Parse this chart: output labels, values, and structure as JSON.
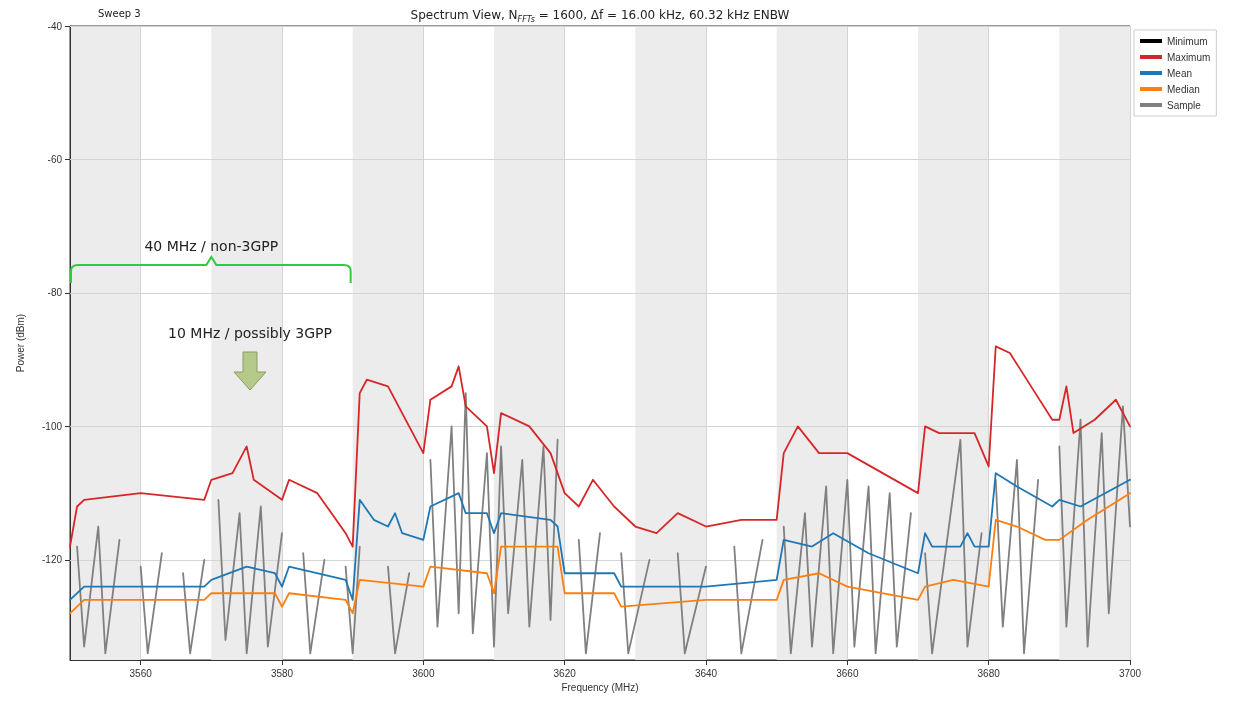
{
  "chart_data": {
    "type": "line",
    "title": "Spectrum View, N$_{FFTs}$ =  1600, Δf = 16.00 kHz, 60.32 kHz ENBW",
    "xlabel": "Frequency (MHz)",
    "ylabel": "Power (dBm)",
    "xlim": [
      3550,
      3700
    ],
    "xticks": [
      3560,
      3580,
      3600,
      3620,
      3640,
      3660,
      3680,
      3700
    ],
    "ylim": [
      -135,
      -40
    ],
    "yticks": [
      -120,
      -100,
      -80,
      -60,
      -40
    ],
    "grid": true,
    "legend": "top right",
    "marker": "none",
    "line_style": "solid",
    "annotations": [
      "Sweep 3",
      {
        "text": "40 MHz / non-3GPP",
        "x": 3570,
        "y": -74
      },
      "10 MHz / possibly 3GPP"
    ],
    "bands": [
      {
        "axis": "x",
        "from": 3550,
        "to": 3560,
        "color": "#ececec"
      },
      {
        "axis": "x",
        "from": 3570,
        "to": 3580,
        "color": "#ececec"
      },
      {
        "axis": "x",
        "from": 3590,
        "to": 3600,
        "color": "#ececec"
      },
      {
        "axis": "x",
        "from": 3610,
        "to": 3620,
        "color": "#ececec"
      },
      {
        "axis": "x",
        "from": 3630,
        "to": 3640,
        "color": "#ececec"
      },
      {
        "axis": "x",
        "from": 3650,
        "to": 3660,
        "color": "#ececec"
      },
      {
        "axis": "x",
        "from": 3670,
        "to": 3680,
        "color": "#ececec"
      },
      {
        "axis": "x",
        "from": 3690,
        "to": 3700,
        "color": "#ececec"
      }
    ],
    "series": [
      {
        "name": "Minimum",
        "color": "#000000"
      },
      {
        "name": "Maximum",
        "color": "#d62728",
        "x": [
          3550,
          3551,
          3552,
          3560,
          3569,
          3570,
          3573,
          3575,
          3576,
          3580,
          3581,
          3585,
          3589,
          3590,
          3591,
          3592,
          3595,
          3597,
          3600,
          3601,
          3604,
          3605,
          3606,
          3609,
          3610,
          3611,
          3615,
          3618,
          3620,
          3622,
          3624,
          3627,
          3630,
          3633,
          3636,
          3640,
          3645,
          3650,
          3651,
          3653,
          3656,
          3660,
          3665,
          3670,
          3671,
          3673,
          3678,
          3680,
          3681,
          3683,
          3686,
          3689,
          3690,
          3691,
          3692,
          3695,
          3698,
          3700
        ],
        "values": [
          -118,
          -112,
          -111,
          -110,
          -111,
          -108,
          -107,
          -103,
          -108,
          -111,
          -108,
          -110,
          -116,
          -118,
          -95,
          -93,
          -94,
          -98,
          -104,
          -96,
          -94,
          -91,
          -97,
          -100,
          -107,
          -98,
          -100,
          -104,
          -110,
          -112,
          -108,
          -112,
          -115,
          -116,
          -113,
          -115,
          -114,
          -114,
          -104,
          -100,
          -104,
          -104,
          -107,
          -110,
          -100,
          -101,
          -101,
          -106,
          -88,
          -89,
          -94,
          -99,
          -99,
          -94,
          -101,
          -99,
          -96,
          -100
        ]
      },
      {
        "name": "Mean",
        "color": "#1f77b4",
        "x": [
          3550,
          3552,
          3560,
          3569,
          3570,
          3575,
          3579,
          3580,
          3581,
          3589,
          3590,
          3591,
          3593,
          3595,
          3596,
          3597,
          3600,
          3601,
          3605,
          3606,
          3609,
          3610,
          3611,
          3618,
          3619,
          3620,
          3627,
          3628,
          3640,
          3650,
          3651,
          3655,
          3658,
          3663,
          3670,
          3671,
          3672,
          3676,
          3677,
          3678,
          3680,
          3681,
          3684,
          3689,
          3690,
          3693,
          3700
        ],
        "values": [
          -126,
          -124,
          -124,
          -124,
          -123,
          -121,
          -122,
          -124,
          -121,
          -123,
          -126,
          -111,
          -114,
          -115,
          -113,
          -116,
          -117,
          -112,
          -110,
          -113,
          -113,
          -116,
          -113,
          -114,
          -115,
          -122,
          -122,
          -124,
          -124,
          -123,
          -117,
          -118,
          -116,
          -119,
          -122,
          -116,
          -118,
          -118,
          -116,
          -118,
          -118,
          -107,
          -109,
          -112,
          -111,
          -112,
          -108
        ]
      },
      {
        "name": "Median",
        "color": "#ff7f0e",
        "x": [
          3550,
          3552,
          3560,
          3569,
          3570,
          3579,
          3580,
          3581,
          3589,
          3590,
          3591,
          3600,
          3601,
          3609,
          3610,
          3611,
          3619,
          3620,
          3627,
          3628,
          3640,
          3650,
          3651,
          3656,
          3660,
          3670,
          3671,
          3675,
          3680,
          3681,
          3684,
          3688,
          3690,
          3694,
          3700
        ],
        "values": [
          -128,
          -126,
          -126,
          -126,
          -125,
          -125,
          -127,
          -125,
          -126,
          -128,
          -123,
          -124,
          -121,
          -122,
          -125,
          -118,
          -118,
          -125,
          -125,
          -127,
          -126,
          -126,
          -123,
          -122,
          -124,
          -126,
          -124,
          -123,
          -124,
          -114,
          -115,
          -117,
          -117,
          -114,
          -110
        ]
      },
      {
        "name": "Sample",
        "color": "#808080",
        "x": [
          3551,
          3552,
          3554,
          3555,
          3557,
          3558,
          3560,
          3561,
          3563,
          3564,
          3566,
          3567,
          3569,
          3570,
          3571,
          3572,
          3574,
          3575,
          3577,
          3578,
          3580,
          3581,
          3583,
          3584,
          3586,
          3587,
          3589,
          3590,
          3591,
          3593,
          3595,
          3596,
          3598,
          3599,
          3601,
          3602,
          3604,
          3605,
          3606,
          3607,
          3609,
          3610,
          3611,
          3612,
          3614,
          3615,
          3617,
          3618,
          3619,
          3620,
          3622,
          3623,
          3625,
          3626,
          3628,
          3629,
          3632,
          3633,
          3636,
          3637,
          3640,
          3641,
          3644,
          3645,
          3648,
          3649,
          3651,
          3652,
          3654,
          3655,
          3657,
          3658,
          3660,
          3661,
          3663,
          3664,
          3666,
          3667,
          3669,
          3670,
          3671,
          3672,
          3676,
          3677,
          3679,
          3680,
          3681,
          3682,
          3684,
          3685,
          3687,
          3688,
          3690,
          3691,
          3693,
          3694,
          3696,
          3697,
          3699,
          3700
        ],
        "values": [
          -118,
          -133,
          -115,
          -134,
          -117,
          null,
          -121,
          -134,
          -119,
          null,
          -122,
          -134,
          -120,
          null,
          -111,
          -132,
          -113,
          -134,
          -112,
          -133,
          -116,
          null,
          -119,
          -134,
          -120,
          null,
          -121,
          -134,
          -118,
          null,
          -121,
          -134,
          -122,
          null,
          -105,
          -130,
          -100,
          -128,
          -95,
          -131,
          -104,
          -133,
          -103,
          -128,
          -105,
          -130,
          -103,
          -129,
          -102,
          null,
          -117,
          -134,
          -116,
          null,
          -119,
          -134,
          -120,
          null,
          -119,
          -134,
          -121,
          null,
          -118,
          -134,
          -117,
          null,
          -115,
          -134,
          -113,
          -133,
          -109,
          -134,
          -108,
          -133,
          -109,
          -134,
          -110,
          -133,
          -113,
          null,
          -119,
          -134,
          -102,
          -133,
          -116,
          null,
          -108,
          -130,
          -105,
          -134,
          -108,
          null,
          -103,
          -130,
          -99,
          -133,
          -101,
          -128,
          -97,
          -115
        ]
      }
    ]
  }
}
